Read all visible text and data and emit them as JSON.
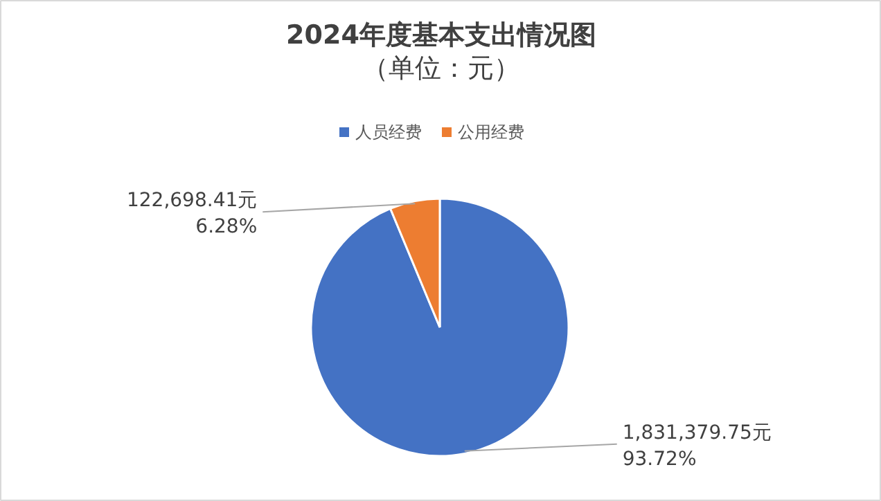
{
  "chart_data": {
    "type": "pie",
    "title": "2024年度基本支出情况图",
    "subtitle": "（单位：元）",
    "categories": [
      "人员经费",
      "公用经费"
    ],
    "values": [
      1831379.75,
      122698.41
    ],
    "colors": [
      "#4472c4",
      "#ed7d31"
    ],
    "value_labels": [
      "1,831,379.75元\n93.72%",
      "122,698.41元\n6.28%"
    ],
    "legend": "top"
  }
}
